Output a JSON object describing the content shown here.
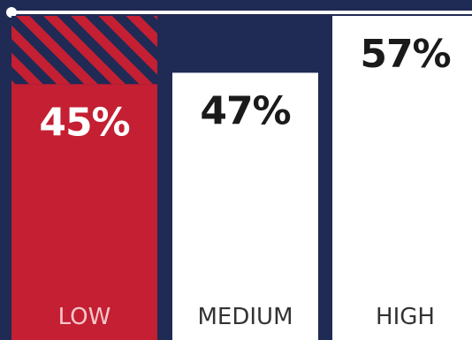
{
  "chart_data": {
    "type": "bar",
    "categories": [
      "LOW",
      "MEDIUM",
      "HIGH"
    ],
    "values": [
      45,
      47,
      57
    ],
    "value_labels": [
      "45%",
      "47%",
      "57%"
    ],
    "highlight_category": "LOW",
    "ylim": [
      0,
      60
    ],
    "colors": {
      "background": "#1f2a55",
      "highlight_bar": "#c41f32",
      "bar": "#ffffff",
      "highlight_text": "#ffffff",
      "text": "#1a1a1a",
      "highlight_category_text": "#f4c7cc",
      "category_text": "#333333",
      "hatch_dark": "#1f2a55",
      "hatch_light": "#c41f32"
    },
    "legend": "none",
    "grid": false
  }
}
